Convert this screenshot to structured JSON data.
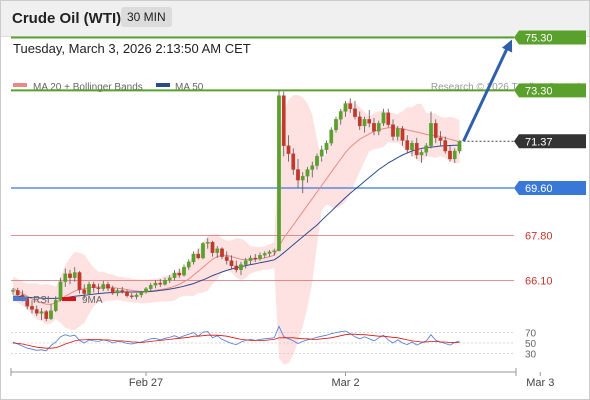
{
  "header": {
    "title": "Crude Oil (WTI)",
    "timeframe": "30 MIN"
  },
  "datetime": "Tuesday, March 3, 2026 2:13:50 AM CET",
  "legend": {
    "ma20": "MA 20 + Bollinger Bands",
    "ma50": "MA 50",
    "credit": "Research © 2026 Trading Central",
    "rsi": "RSI",
    "rsi_ma": "9MA"
  },
  "colors": {
    "up": "#5aa02c",
    "down": "#c0392b",
    "support": "#3a78d8",
    "ma20": "#e88a8a",
    "ma50": "#2c4a8a",
    "band": "#fdd8d8",
    "target": "#5aa02c",
    "arrow": "#2f5fa8"
  },
  "chart_data": {
    "type": "candlestick",
    "price_axis": [
      {
        "value": 75.3,
        "label": "75.30",
        "kind": "target"
      },
      {
        "value": 73.3,
        "label": "73.30",
        "kind": "target"
      },
      {
        "value": 71.37,
        "label": "71.37",
        "kind": "last"
      },
      {
        "value": 69.6,
        "label": "69.60",
        "kind": "support"
      },
      {
        "value": 67.8,
        "label": "67.80",
        "kind": "resistance"
      },
      {
        "value": 66.1,
        "label": "66.10",
        "kind": "resistance"
      }
    ],
    "x_tick_labels": [
      {
        "label": "Feb 27",
        "index": 28
      },
      {
        "label": "Mar 2",
        "index": 70
      },
      {
        "label": "Mar 3",
        "index": 111
      }
    ],
    "rsi_levels": [
      70,
      50,
      30
    ],
    "ohlc": [
      [
        65.7,
        65.8,
        65.55,
        65.72
      ],
      [
        65.72,
        65.82,
        65.5,
        65.55
      ],
      [
        65.55,
        65.72,
        65.3,
        65.42
      ],
      [
        65.42,
        65.45,
        65.0,
        65.12
      ],
      [
        65.12,
        65.35,
        64.85,
        65.0
      ],
      [
        65.0,
        65.15,
        64.75,
        64.85
      ],
      [
        64.85,
        65.05,
        64.6,
        64.92
      ],
      [
        64.92,
        64.98,
        64.55,
        64.65
      ],
      [
        64.65,
        65.2,
        64.6,
        64.95
      ],
      [
        64.95,
        65.5,
        64.9,
        65.35
      ],
      [
        65.35,
        66.2,
        65.3,
        66.05
      ],
      [
        66.05,
        66.55,
        65.85,
        66.35
      ],
      [
        66.35,
        66.5,
        65.95,
        66.2
      ],
      [
        66.2,
        66.6,
        66.05,
        66.4
      ],
      [
        66.4,
        66.45,
        65.6,
        65.75
      ],
      [
        65.75,
        65.95,
        65.4,
        65.6
      ],
      [
        65.6,
        66.05,
        65.55,
        65.95
      ],
      [
        65.95,
        66.05,
        65.65,
        65.82
      ],
      [
        65.82,
        65.98,
        65.6,
        65.78
      ],
      [
        65.78,
        66.08,
        65.7,
        65.95
      ],
      [
        65.95,
        66.05,
        65.7,
        65.8
      ],
      [
        65.8,
        65.9,
        65.55,
        65.62
      ],
      [
        65.62,
        65.8,
        65.5,
        65.72
      ],
      [
        65.72,
        65.85,
        65.6,
        65.68
      ],
      [
        65.68,
        65.75,
        65.45,
        65.52
      ],
      [
        65.52,
        65.62,
        65.4,
        65.48
      ],
      [
        65.48,
        65.62,
        65.38,
        65.55
      ],
      [
        65.55,
        65.7,
        65.45,
        65.65
      ],
      [
        65.65,
        65.85,
        65.6,
        65.78
      ],
      [
        65.78,
        66.0,
        65.7,
        65.92
      ],
      [
        65.92,
        66.1,
        65.8,
        66.0
      ],
      [
        66.0,
        66.15,
        65.85,
        65.95
      ],
      [
        65.95,
        66.2,
        65.9,
        66.1
      ],
      [
        66.1,
        66.3,
        66.0,
        66.2
      ],
      [
        66.2,
        66.5,
        66.1,
        66.38
      ],
      [
        66.38,
        66.55,
        66.2,
        66.3
      ],
      [
        66.3,
        66.7,
        66.25,
        66.6
      ],
      [
        66.6,
        66.9,
        66.5,
        66.8
      ],
      [
        66.8,
        67.2,
        66.7,
        67.1
      ],
      [
        67.1,
        67.3,
        66.9,
        66.95
      ],
      [
        66.95,
        67.55,
        66.9,
        67.5
      ],
      [
        67.5,
        67.7,
        67.3,
        67.55
      ],
      [
        67.55,
        67.6,
        67.0,
        67.15
      ],
      [
        67.15,
        67.4,
        66.95,
        67.3
      ],
      [
        67.3,
        67.35,
        66.9,
        67.0
      ],
      [
        67.0,
        67.2,
        66.7,
        66.85
      ],
      [
        66.85,
        67.05,
        66.55,
        66.65
      ],
      [
        66.65,
        66.85,
        66.4,
        66.5
      ],
      [
        66.5,
        66.8,
        66.3,
        66.7
      ],
      [
        66.7,
        66.95,
        66.55,
        66.85
      ],
      [
        66.85,
        67.05,
        66.7,
        66.95
      ],
      [
        66.95,
        67.1,
        66.8,
        66.92
      ],
      [
        66.92,
        67.15,
        66.85,
        67.05
      ],
      [
        67.05,
        67.2,
        66.95,
        67.12
      ],
      [
        67.12,
        67.25,
        67.0,
        67.18
      ],
      [
        67.18,
        67.3,
        67.05,
        67.22
      ],
      [
        67.22,
        73.3,
        67.2,
        73.1
      ],
      [
        73.1,
        73.25,
        70.8,
        71.2
      ],
      [
        71.2,
        71.6,
        70.6,
        70.9
      ],
      [
        70.9,
        71.1,
        70.1,
        70.3
      ],
      [
        70.3,
        70.7,
        69.6,
        69.9
      ],
      [
        69.9,
        70.2,
        69.4,
        70.05
      ],
      [
        70.05,
        70.4,
        69.8,
        70.3
      ],
      [
        70.3,
        70.6,
        70.0,
        70.45
      ],
      [
        70.45,
        70.9,
        70.3,
        70.8
      ],
      [
        70.8,
        71.2,
        70.6,
        71.05
      ],
      [
        71.05,
        71.4,
        70.9,
        71.3
      ],
      [
        71.3,
        71.9,
        71.2,
        71.8
      ],
      [
        71.8,
        72.3,
        71.7,
        72.2
      ],
      [
        72.2,
        72.6,
        72.0,
        72.5
      ],
      [
        72.5,
        72.9,
        72.3,
        72.8
      ],
      [
        72.8,
        73.0,
        72.45,
        72.6
      ],
      [
        72.6,
        72.9,
        72.2,
        72.3
      ],
      [
        72.3,
        72.5,
        71.8,
        71.95
      ],
      [
        71.95,
        72.3,
        71.7,
        72.2
      ],
      [
        72.2,
        72.55,
        71.9,
        72.05
      ],
      [
        72.05,
        72.25,
        71.6,
        71.75
      ],
      [
        71.75,
        72.15,
        71.6,
        72.05
      ],
      [
        72.05,
        72.6,
        71.95,
        72.45
      ],
      [
        72.45,
        72.6,
        71.9,
        72.0
      ],
      [
        72.0,
        72.2,
        71.4,
        71.55
      ],
      [
        71.55,
        71.95,
        71.4,
        71.85
      ],
      [
        71.85,
        71.95,
        71.2,
        71.4
      ],
      [
        71.4,
        71.6,
        70.9,
        71.05
      ],
      [
        71.05,
        71.4,
        70.8,
        71.3
      ],
      [
        71.3,
        71.5,
        70.7,
        70.85
      ],
      [
        70.85,
        71.05,
        70.55,
        70.95
      ],
      [
        70.95,
        71.3,
        70.8,
        71.2
      ],
      [
        71.2,
        72.5,
        71.1,
        72.05
      ],
      [
        72.05,
        72.2,
        71.3,
        71.5
      ],
      [
        71.5,
        71.75,
        71.2,
        71.4
      ],
      [
        71.4,
        71.55,
        70.9,
        71.0
      ],
      [
        71.0,
        71.2,
        70.6,
        70.7
      ],
      [
        70.7,
        71.1,
        70.55,
        71.0
      ],
      [
        71.0,
        71.4,
        70.9,
        71.37
      ]
    ],
    "ma20": [
      65.8,
      65.7,
      65.6,
      65.5,
      65.4,
      65.3,
      65.25,
      65.2,
      65.2,
      65.25,
      65.35,
      65.5,
      65.6,
      65.7,
      65.75,
      65.78,
      65.82,
      65.85,
      65.85,
      65.85,
      65.85,
      65.83,
      65.8,
      65.78,
      65.75,
      65.72,
      65.7,
      65.68,
      65.68,
      65.7,
      65.72,
      65.75,
      65.78,
      65.82,
      65.88,
      65.95,
      66.05,
      66.15,
      66.3,
      66.45,
      66.6,
      66.75,
      66.9,
      67.0,
      67.05,
      67.05,
      67.0,
      66.95,
      66.9,
      66.88,
      66.88,
      66.9,
      66.92,
      66.95,
      67.0,
      67.05,
      67.4,
      67.7,
      67.95,
      68.2,
      68.45,
      68.7,
      68.95,
      69.2,
      69.45,
      69.7,
      69.95,
      70.2,
      70.45,
      70.7,
      70.95,
      71.15,
      71.3,
      71.45,
      71.55,
      71.65,
      71.75,
      71.8,
      71.85,
      71.88,
      71.88,
      71.86,
      71.84,
      71.8,
      71.76,
      71.72,
      71.68,
      71.63,
      71.6,
      71.58,
      71.55,
      71.5,
      71.45,
      71.4,
      71.35
    ],
    "ma50": [
      65.5,
      65.5,
      65.48,
      65.46,
      65.45,
      65.44,
      65.43,
      65.42,
      65.42,
      65.42,
      65.43,
      65.45,
      65.47,
      65.5,
      65.52,
      65.54,
      65.56,
      65.58,
      65.6,
      65.62,
      65.63,
      65.64,
      65.65,
      65.66,
      65.66,
      65.66,
      65.66,
      65.66,
      65.67,
      65.68,
      65.7,
      65.72,
      65.74,
      65.77,
      65.8,
      65.84,
      65.88,
      65.93,
      65.98,
      66.05,
      66.12,
      66.2,
      66.28,
      66.35,
      66.42,
      66.48,
      66.53,
      66.58,
      66.62,
      66.66,
      66.7,
      66.73,
      66.77,
      66.8,
      66.84,
      66.88,
      67.0,
      67.15,
      67.3,
      67.45,
      67.6,
      67.75,
      67.9,
      68.05,
      68.2,
      68.38,
      68.55,
      68.72,
      68.9,
      69.07,
      69.24,
      69.4,
      69.55,
      69.7,
      69.85,
      70.0,
      70.15,
      70.3,
      70.42,
      70.55,
      70.65,
      70.75,
      70.85,
      70.93,
      71.0,
      71.05,
      71.1,
      71.13,
      71.15,
      71.17,
      71.19,
      71.2,
      71.21,
      71.22,
      71.22
    ],
    "rsi": [
      52,
      48,
      44,
      40,
      38,
      36,
      37,
      35,
      45,
      52,
      62,
      66,
      63,
      65,
      55,
      50,
      56,
      54,
      53,
      56,
      54,
      50,
      53,
      52,
      49,
      48,
      50,
      52,
      55,
      58,
      59,
      56,
      59,
      61,
      64,
      60,
      64,
      67,
      70,
      63,
      71,
      72,
      60,
      64,
      57,
      53,
      49,
      47,
      52,
      55,
      57,
      55,
      57,
      58,
      59,
      60,
      82,
      62,
      58,
      54,
      49,
      53,
      56,
      58,
      61,
      63,
      65,
      68,
      70,
      72,
      73,
      68,
      62,
      58,
      62,
      58,
      54,
      60,
      65,
      56,
      50,
      56,
      50,
      47,
      52,
      46,
      50,
      54,
      66,
      55,
      52,
      49,
      46,
      51,
      54
    ],
    "rsi_ma": [
      50,
      49,
      48,
      46,
      44,
      42,
      41,
      40,
      40,
      41,
      44,
      48,
      51,
      54,
      56,
      56,
      57,
      57,
      57,
      56,
      56,
      55,
      54,
      54,
      53,
      52,
      52,
      51,
      52,
      53,
      54,
      55,
      56,
      57,
      58,
      59,
      60,
      61,
      63,
      63,
      64,
      65,
      65,
      65,
      64,
      63,
      61,
      59,
      57,
      56,
      55,
      55,
      55,
      55,
      56,
      57,
      60,
      60,
      60,
      60,
      59,
      58,
      58,
      57,
      57,
      58,
      59,
      60,
      62,
      64,
      66,
      67,
      67,
      66,
      66,
      65,
      64,
      63,
      63,
      62,
      61,
      60,
      58,
      56,
      54,
      53,
      52,
      52,
      53,
      53,
      52,
      52,
      51,
      51,
      51
    ]
  }
}
